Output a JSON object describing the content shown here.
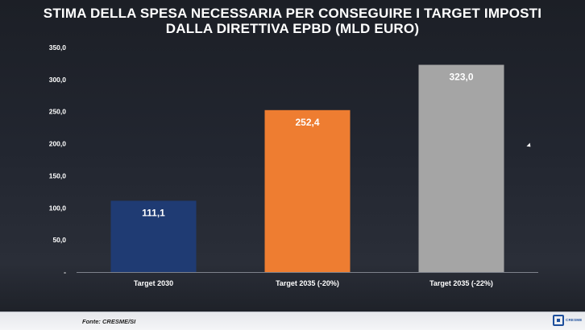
{
  "chart_data": {
    "type": "bar",
    "title": [
      "STIMA DELLA SPESA NECESSARIA PER CONSEGUIRE I TARGET IMPOSTI",
      "DALLA DIRETTIVA EPBD (MLD EURO)"
    ],
    "categories": [
      "Target 2030",
      "Target 2035 (-20%)",
      "Target 2035 (-22%)"
    ],
    "values": [
      111.1,
      252.4,
      323.0
    ],
    "value_labels": [
      "111,1",
      "252,4",
      "323,0"
    ],
    "bar_colors": [
      "#1f3b73",
      "#ee7d31",
      "#a5a5a5"
    ],
    "ylim": [
      0,
      350
    ],
    "yticks": [
      0,
      50,
      100,
      150,
      200,
      250,
      300,
      350
    ],
    "ytick_labels": [
      "-",
      "50,0",
      "100,0",
      "150,0",
      "200,0",
      "250,0",
      "300,0",
      "350,0"
    ],
    "xlabel": "",
    "ylabel": "",
    "grid": false,
    "legend": "none"
  },
  "footer": {
    "source": "Fonte: CRESME/SI",
    "logo_text": "CRESME"
  }
}
